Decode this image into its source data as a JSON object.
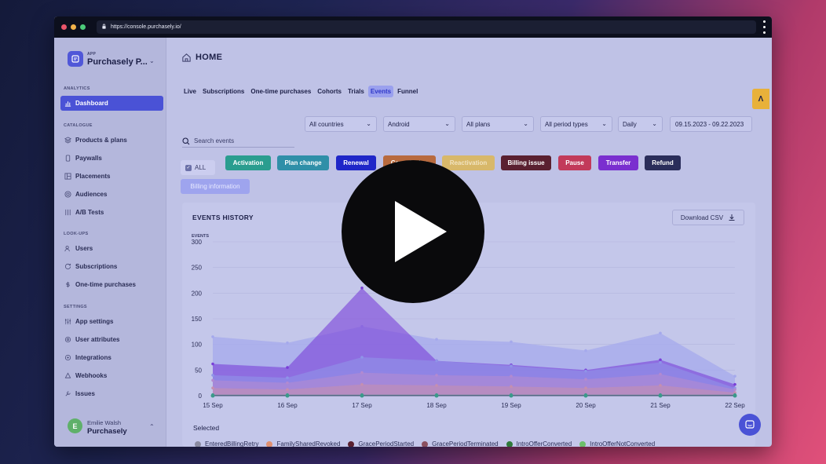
{
  "browser": {
    "url": "https://console.purchasely.io/"
  },
  "sidebar": {
    "app_label": "APP",
    "app_name": "Purchasely P...",
    "sections": {
      "analytics": "ANALYTICS",
      "catalogue": "CATALOGUE",
      "lookups": "LOOK-UPS",
      "settings": "SETTINGS"
    },
    "items": {
      "dashboard": "Dashboard",
      "products": "Products & plans",
      "paywalls": "Paywalls",
      "placements": "Placements",
      "audiences": "Audiences",
      "abtests": "A/B Tests",
      "users": "Users",
      "subscriptions": "Subscriptions",
      "onetime": "One-time purchases",
      "appsettings": "App settings",
      "userattrs": "User attributes",
      "integrations": "Integrations",
      "webhooks": "Webhooks",
      "issues": "Issues"
    },
    "user": {
      "initial": "E",
      "name": "Emilie Walsh",
      "org": "Purchasely"
    }
  },
  "header": {
    "title": "HOME",
    "tabs": [
      "Live",
      "Subscriptions",
      "One-time purchases",
      "Cohorts",
      "Trials",
      "Events",
      "Funnel"
    ],
    "active_tab": "Events"
  },
  "filters": {
    "countries": "All countries",
    "platform": "Android",
    "plans": "All plans",
    "periods": "All period types",
    "granularity": "Daily",
    "daterange": "09.15.2023 - 09.22.2023"
  },
  "search": {
    "placeholder": "Search events"
  },
  "chips": {
    "all": "ALL",
    "items": [
      {
        "label": "Activation",
        "color": "#2a9d8f"
      },
      {
        "label": "Plan change",
        "color": "#2f8fa8"
      },
      {
        "label": "Renewal",
        "color": "#1f26c8"
      },
      {
        "label": "Cancellation",
        "color": "#b86a3e"
      },
      {
        "label": "Reactivation",
        "color": "#d8b86a"
      },
      {
        "label": "Billing issue",
        "color": "#5a2030"
      },
      {
        "label": "Pause",
        "color": "#c23a5a"
      },
      {
        "label": "Transfer",
        "color": "#7a2fcf"
      },
      {
        "label": "Refund",
        "color": "#2a2d5a"
      },
      {
        "label": "Billing information",
        "color": "#9ea4ee"
      }
    ]
  },
  "card": {
    "title": "EVENTS HISTORY",
    "download": "Download CSV",
    "selected": "Selected"
  },
  "chart_data": {
    "type": "area",
    "ylabel": "EVENTS",
    "ylim": [
      0,
      300
    ],
    "yticks": [
      0,
      50,
      100,
      150,
      200,
      250,
      300
    ],
    "categories": [
      "15 Sep",
      "16 Sep",
      "17 Sep",
      "18 Sep",
      "19 Sep",
      "20 Sep",
      "21 Sep",
      "22 Sep"
    ],
    "series": [
      {
        "values": [
          115,
          103,
          135,
          110,
          105,
          88,
          122,
          38
        ],
        "color": "#a5a9ec"
      },
      {
        "values": [
          62,
          55,
          210,
          68,
          60,
          50,
          70,
          22
        ],
        "color": "#7a3fd8"
      },
      {
        "values": [
          40,
          35,
          75,
          68,
          58,
          48,
          65,
          15
        ],
        "color": "#8f94e8"
      },
      {
        "values": [
          30,
          25,
          45,
          40,
          38,
          32,
          42,
          12
        ],
        "color": "#b28ad0"
      },
      {
        "values": [
          15,
          12,
          22,
          20,
          18,
          15,
          20,
          6
        ],
        "color": "#c58fb0"
      },
      {
        "values": [
          2,
          2,
          2,
          2,
          2,
          2,
          2,
          2
        ],
        "color": "#3a9a8a"
      }
    ],
    "legend": [
      {
        "name": "EnteredBillingRetry",
        "color": "#8a8aa0"
      },
      {
        "name": "FamilySharedRevoked",
        "color": "#e09070"
      },
      {
        "name": "GracePeriodStarted",
        "color": "#5a2030"
      },
      {
        "name": "GracePeriodTerminated",
        "color": "#8a5060"
      },
      {
        "name": "IntroOfferConverted",
        "color": "#2f7a3a"
      },
      {
        "name": "IntroOfferNotConverted",
        "color": "#6cc06a"
      }
    ]
  }
}
